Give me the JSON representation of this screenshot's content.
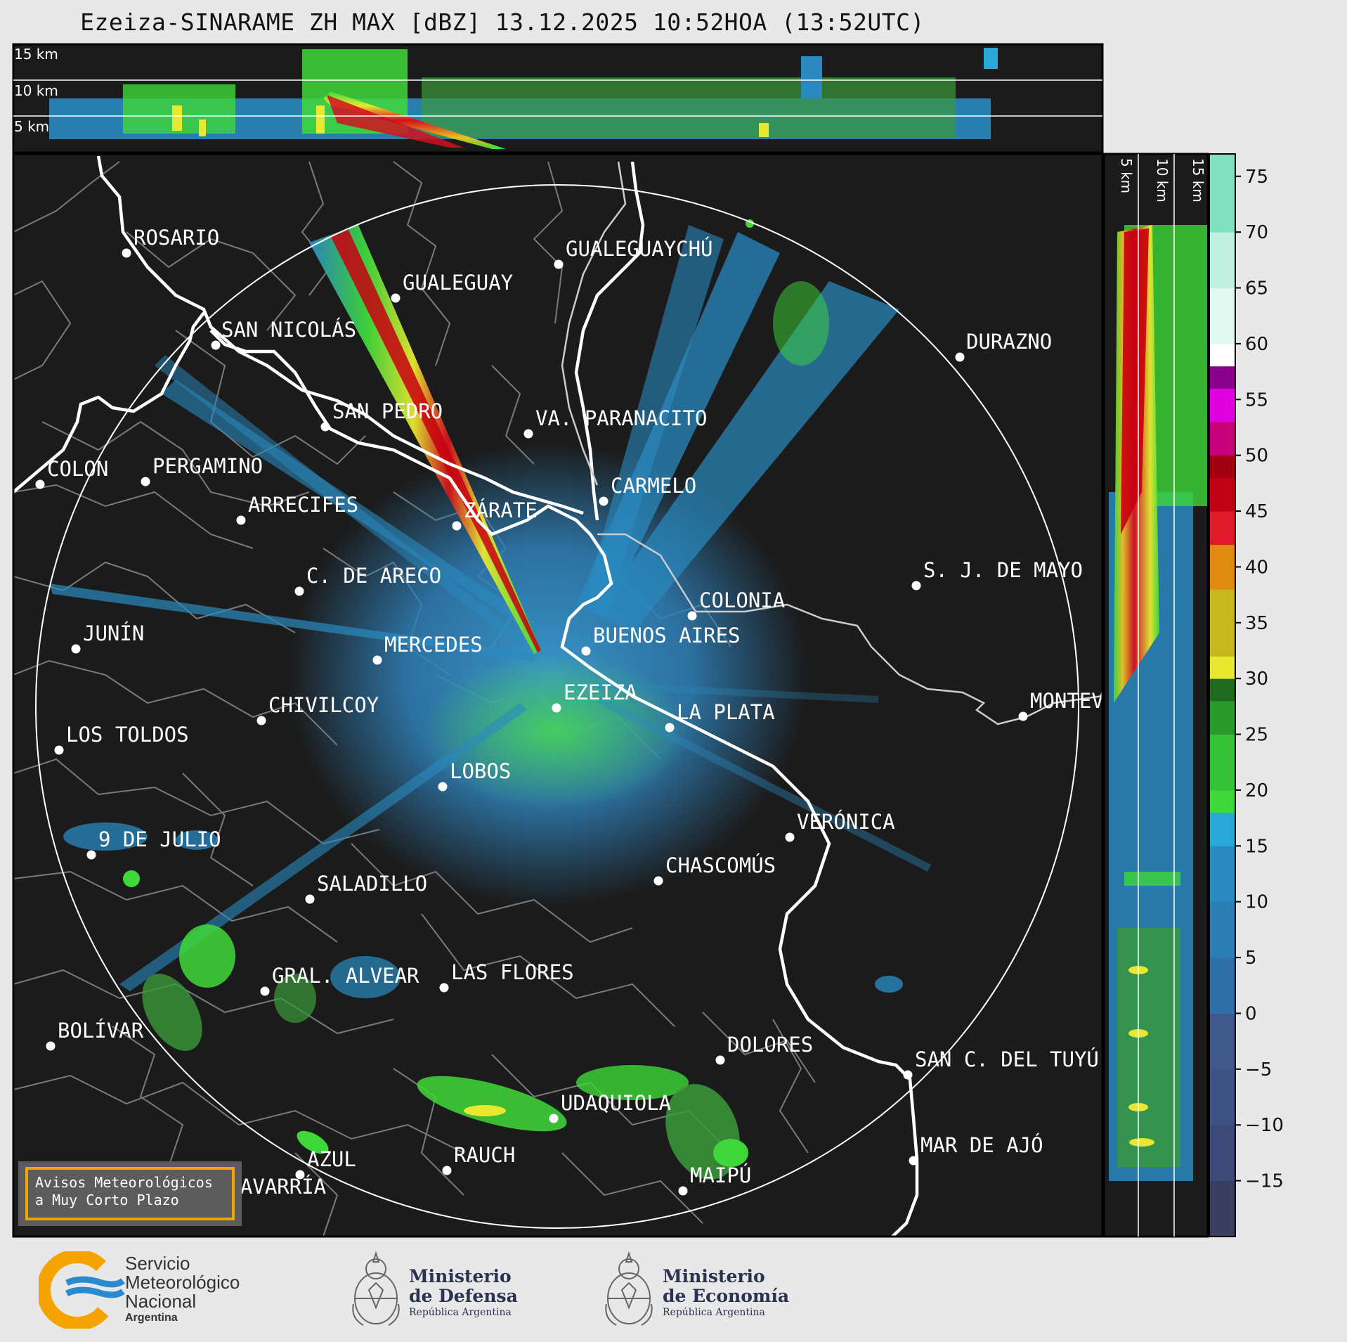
{
  "title": "Ezeiza-SINARAME ZH MAX [dBZ] 13.12.2025 10:52HOA (13:52UTC)",
  "top_panel": {
    "height_labels": [
      "15 km",
      "10 km",
      "5 km"
    ]
  },
  "side_panel": {
    "height_labels": [
      "5 km",
      "10 km",
      "15 km"
    ]
  },
  "colorbar": {
    "ticks": [
      "75",
      "70",
      "65",
      "60",
      "55",
      "50",
      "45",
      "40",
      "35",
      "30",
      "25",
      "20",
      "15",
      "10",
      "5",
      "0",
      "−5",
      "−10",
      "−15"
    ],
    "tick_values": [
      75,
      70,
      65,
      60,
      55,
      50,
      45,
      40,
      35,
      30,
      25,
      20,
      15,
      10,
      5,
      0,
      -5,
      -10,
      -15
    ],
    "range": [
      -20,
      77
    ],
    "colors": {
      "minus20": "#3a3f62",
      "minus10": "#3f5a8a",
      "zero": "#2f6fa8",
      "ten": "#2a8ac0",
      "fifteen": "#29a8d8",
      "twenty": "#3fd83a",
      "twentyfive": "#2a9a2a",
      "thirty": "#1f6a1f",
      "thirtyone": "#e8e830",
      "thirtyfive": "#c8b820",
      "forty": "#e08a10",
      "fortyfive": "#e01a2a",
      "fifty": "#a00010",
      "fiftyfive": "#e000e0",
      "fiftyeight": "#8a008a",
      "sixty": "#ffffff",
      "sixtyfive": "#c0f0e0",
      "seventyfive": "#80e0c0"
    }
  },
  "cities": [
    {
      "id": "rosario",
      "name": "ROSARIO"
    },
    {
      "id": "gualeguaychu",
      "name": "GUALEGUAYCHÚ"
    },
    {
      "id": "gualeguay",
      "name": "GUALEGUAY"
    },
    {
      "id": "san-nicolas",
      "name": "SAN NICOLÁS"
    },
    {
      "id": "durazno",
      "name": "DURAZNO"
    },
    {
      "id": "san-pedro",
      "name": "SAN PEDRO"
    },
    {
      "id": "va-paranacito",
      "name": "VA. PARANACITO"
    },
    {
      "id": "colon",
      "name": "COLON"
    },
    {
      "id": "pergamino",
      "name": "PERGAMINO"
    },
    {
      "id": "carmelo",
      "name": "CARMELO"
    },
    {
      "id": "arrecifes",
      "name": "ARRECIFES"
    },
    {
      "id": "zarate",
      "name": "ZÁRATE"
    },
    {
      "id": "c-de-areco",
      "name": "C. DE ARECO"
    },
    {
      "id": "s-j-de-mayo",
      "name": "S. J. DE MAYO"
    },
    {
      "id": "colonia",
      "name": "COLONIA"
    },
    {
      "id": "junin",
      "name": "JUNÍN"
    },
    {
      "id": "mercedes",
      "name": "MERCEDES"
    },
    {
      "id": "buenos-aires",
      "name": "BUENOS AIRES"
    },
    {
      "id": "ezeiza",
      "name": "EZEIZA"
    },
    {
      "id": "montevideo",
      "name": "MONTEV"
    },
    {
      "id": "chivilcoy",
      "name": "CHIVILCOY"
    },
    {
      "id": "la-plata",
      "name": "LA PLATA"
    },
    {
      "id": "los-toldos",
      "name": "LOS TOLDOS"
    },
    {
      "id": "lobos",
      "name": "LOBOS"
    },
    {
      "id": "veronica",
      "name": "VERÓNICA"
    },
    {
      "id": "nueve-de-julio",
      "name": "9 DE JULIO"
    },
    {
      "id": "chascomus",
      "name": "CHASCOMÚS"
    },
    {
      "id": "saladillo",
      "name": "SALADILLO"
    },
    {
      "id": "gral-alvear",
      "name": "GRAL. ALVEAR"
    },
    {
      "id": "las-flores",
      "name": "LAS FLORES"
    },
    {
      "id": "bolivar",
      "name": "BOLÍVAR"
    },
    {
      "id": "dolores",
      "name": "DOLORES"
    },
    {
      "id": "san-c-del-tuyu",
      "name": "SAN C. DEL TUYÚ"
    },
    {
      "id": "udaquiola",
      "name": "UDAQUIOLA"
    },
    {
      "id": "mar-de-ajo",
      "name": "MAR DE AJÓ"
    },
    {
      "id": "rauch",
      "name": "RAUCH"
    },
    {
      "id": "azul",
      "name": "AZUL"
    },
    {
      "id": "olavarria",
      "name": "OLAVARRÍA"
    },
    {
      "id": "maipu",
      "name": "MAIPÚ"
    }
  ],
  "alert_box": {
    "line1": "Avisos Meteorológicos",
    "line2": "a Muy Corto Plazo"
  },
  "logos": {
    "smn": {
      "line1": "Servicio",
      "line2": "Meteorológico",
      "line3": "Nacional",
      "line4": "Argentina"
    },
    "defensa": {
      "line1": "Ministerio",
      "line2": "de Defensa",
      "line3": "República Argentina"
    },
    "economia": {
      "line1": "Ministerio",
      "line2": "de Economía",
      "line3": "República Argentina"
    }
  }
}
